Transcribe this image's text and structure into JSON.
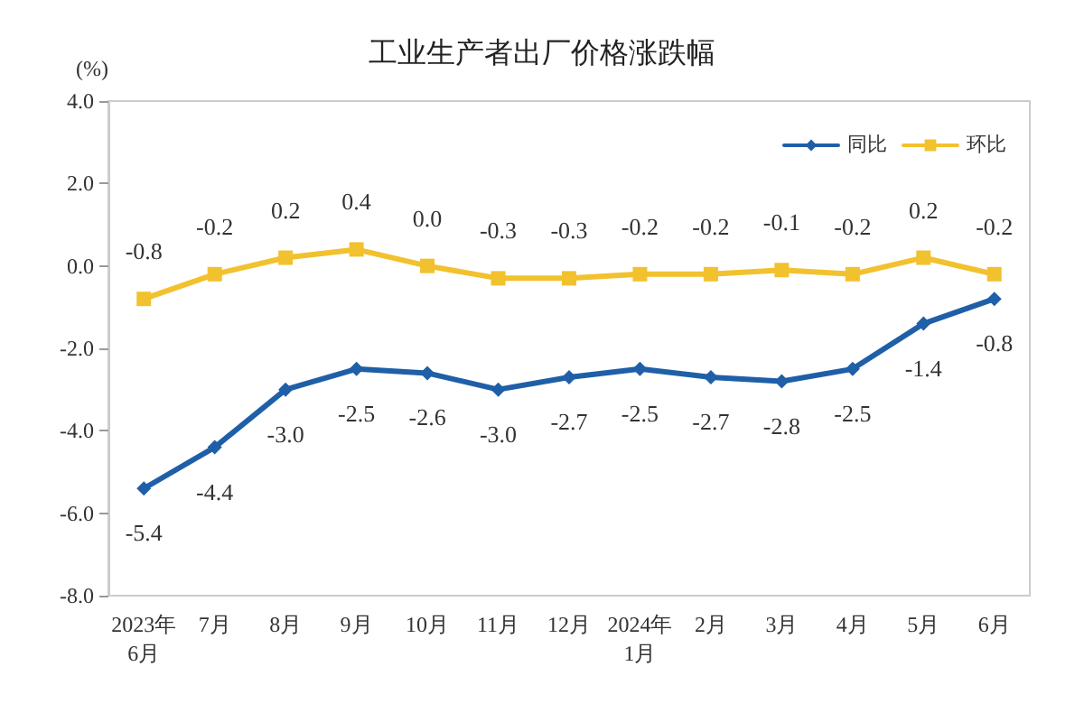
{
  "chart_data": {
    "type": "line",
    "title": "工业生产者出厂价格涨跌幅",
    "ylabel": "(%)",
    "categories": [
      "2023年\n6月",
      "7月",
      "8月",
      "9月",
      "10月",
      "11月",
      "12月",
      "2024年\n1月",
      "2月",
      "3月",
      "4月",
      "5月",
      "6月"
    ],
    "series": [
      {
        "name": "同比",
        "color": "#1f5fa8",
        "marker": "diamond",
        "values": [
          -5.4,
          -4.4,
          -3.0,
          -2.5,
          -2.6,
          -3.0,
          -2.7,
          -2.5,
          -2.7,
          -2.8,
          -2.5,
          -1.4,
          -0.8
        ],
        "value_labels": [
          "-5.4",
          "-4.4",
          "-3.0",
          "-2.5",
          "-2.6",
          "-3.0",
          "-2.7",
          "-2.5",
          "-2.7",
          "-2.8",
          "-2.5",
          "-1.4",
          "-0.8"
        ]
      },
      {
        "name": "环比",
        "color": "#f2c12e",
        "marker": "square",
        "values": [
          -0.8,
          -0.2,
          0.2,
          0.4,
          0.0,
          -0.3,
          -0.3,
          -0.2,
          -0.2,
          -0.1,
          -0.2,
          0.2,
          -0.2
        ],
        "value_labels": [
          "-0.8",
          "-0.2",
          "0.2",
          "0.4",
          "0.0",
          "-0.3",
          "-0.3",
          "-0.2",
          "-0.2",
          "-0.1",
          "-0.2",
          "0.2",
          "-0.2"
        ]
      }
    ],
    "ylim": [
      -8,
      4
    ],
    "yticks": [
      {
        "value": -8,
        "label": "-8.0"
      },
      {
        "value": -6,
        "label": "-6.0"
      },
      {
        "value": -4,
        "label": "-4.0"
      },
      {
        "value": -2,
        "label": "-2.0"
      },
      {
        "value": 0,
        "label": "0.0"
      },
      {
        "value": 2,
        "label": "2.0"
      },
      {
        "value": 4,
        "label": "4.0"
      }
    ],
    "grid": false,
    "legend": "top right",
    "line_style": "solid"
  }
}
